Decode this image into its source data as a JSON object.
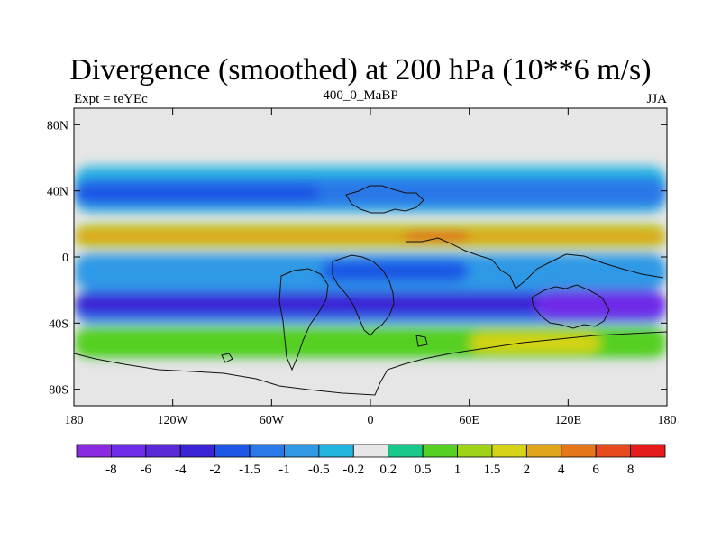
{
  "header": {
    "title": "Divergence (smoothed) at 200 hPa (10**6 m/s)",
    "left_label": "Expt = teYEc",
    "center_label": "400_0_MaBP",
    "right_label": "JJA"
  },
  "map": {
    "lon_range": [
      -180,
      180
    ],
    "lat_range": [
      -90,
      90
    ],
    "lat_ticks": [
      {
        "value": 80,
        "label": "80N"
      },
      {
        "value": 40,
        "label": "40N"
      },
      {
        "value": 0,
        "label": "0"
      },
      {
        "value": -40,
        "label": "40S"
      },
      {
        "value": -80,
        "label": "80S"
      }
    ],
    "lon_ticks": [
      {
        "value": -180,
        "label": "180"
      },
      {
        "value": -120,
        "label": "120W"
      },
      {
        "value": -60,
        "label": "60W"
      },
      {
        "value": 0,
        "label": "0"
      },
      {
        "value": 60,
        "label": "60E"
      },
      {
        "value": 120,
        "label": "120E"
      },
      {
        "value": 180,
        "label": "180"
      }
    ],
    "background_color": "#e6e6e6",
    "field_bands": [
      {
        "lat": [
          27,
          55
        ],
        "lon": [
          -180,
          180
        ],
        "level": -0.5
      },
      {
        "lat": [
          30,
          48
        ],
        "lon": [
          -180,
          180
        ],
        "level": -1.5
      },
      {
        "lat": [
          33,
          44
        ],
        "lon": [
          -180,
          -30
        ],
        "level": -2
      },
      {
        "lat": [
          5,
          20
        ],
        "lon": [
          -180,
          180
        ],
        "level": 1
      },
      {
        "lat": [
          8,
          17
        ],
        "lon": [
          -180,
          180
        ],
        "level": 2
      },
      {
        "lat": [
          10,
          15
        ],
        "lon": [
          20,
          60
        ],
        "level": 6
      },
      {
        "lat": [
          -20,
          2
        ],
        "lon": [
          -180,
          180
        ],
        "level": -1
      },
      {
        "lat": [
          -15,
          -2
        ],
        "lon": [
          -30,
          60
        ],
        "level": -2
      },
      {
        "lat": [
          -40,
          -20
        ],
        "lon": [
          -180,
          180
        ],
        "level": -1.5
      },
      {
        "lat": [
          -35,
          -22
        ],
        "lon": [
          -180,
          180
        ],
        "level": -4
      },
      {
        "lat": [
          -38,
          -20
        ],
        "lon": [
          100,
          180
        ],
        "level": -8
      },
      {
        "lat": [
          -62,
          -42
        ],
        "lon": [
          -180,
          180
        ],
        "level": 0.5
      },
      {
        "lat": [
          -58,
          -46
        ],
        "lon": [
          60,
          140
        ],
        "level": 1.5
      },
      {
        "lat": [
          -78,
          -65
        ],
        "lon": [
          -180,
          180
        ],
        "level": -0.2
      }
    ]
  },
  "colorbar": {
    "colors": [
      "#8a2be2",
      "#6e2be8",
      "#5a2ad8",
      "#3a24d6",
      "#1e56e6",
      "#2b78e8",
      "#2f99e6",
      "#21b5e0",
      "#e6e6e6",
      "#19c98c",
      "#55d023",
      "#9ed318",
      "#d6d316",
      "#e0a51a",
      "#e5761c",
      "#e64a1d",
      "#e61c1c"
    ],
    "labels": [
      "-8",
      "-6",
      "-4",
      "-2",
      "-1.5",
      "-1",
      "-0.5",
      "-0.2",
      "0.2",
      "0.5",
      "1",
      "1.5",
      "2",
      "4",
      "6",
      "8"
    ]
  }
}
